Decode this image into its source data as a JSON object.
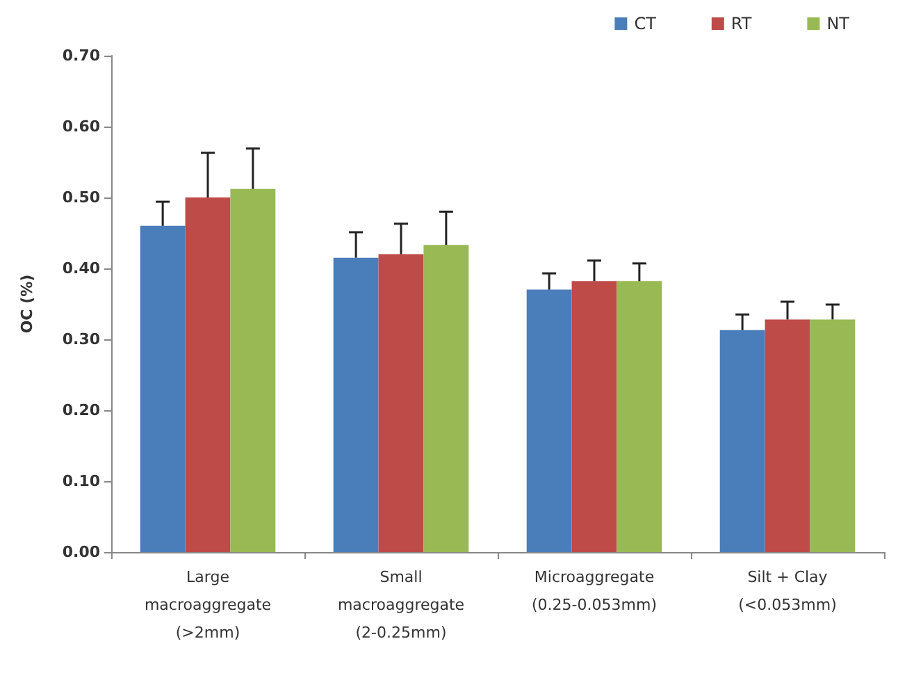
{
  "chart_data": {
    "type": "bar",
    "ylabel": "OC (%)",
    "categories": [
      "Large\nmacroaggregate\n(>2mm)",
      "Small\nmacroaggregate\n(2-0.25mm)",
      "Microaggregate\n(0.25-0.053mm)",
      "Silt + Clay\n(<0.053mm)"
    ],
    "series": [
      {
        "name": "CT",
        "color": "#4a7ebb",
        "values": [
          0.46,
          0.415,
          0.37,
          0.313
        ],
        "errors": [
          [
            0.46,
            0.494
          ],
          [
            0.415,
            0.451
          ],
          [
            0.37,
            0.393
          ],
          [
            0.313,
            0.335
          ]
        ]
      },
      {
        "name": "RT",
        "color": "#be4b48",
        "values": [
          0.5,
          0.42,
          0.382,
          0.328
        ],
        "errors": [
          [
            0.5,
            0.563
          ],
          [
            0.42,
            0.463
          ],
          [
            0.382,
            0.411
          ],
          [
            0.328,
            0.353
          ]
        ]
      },
      {
        "name": "NT",
        "color": "#98b954",
        "values": [
          0.512,
          0.433,
          0.382,
          0.328
        ],
        "errors": [
          [
            0.512,
            0.569
          ],
          [
            0.433,
            0.48
          ],
          [
            0.382,
            0.407
          ],
          [
            0.328,
            0.349
          ]
        ]
      }
    ],
    "ylim": [
      0,
      0.7
    ],
    "yticks": [
      {
        "value": 0,
        "label": "0.00"
      },
      {
        "value": 0.1,
        "label": "0.10"
      },
      {
        "value": 0.2,
        "label": "0.20"
      },
      {
        "value": 0.3,
        "label": "0.30"
      },
      {
        "value": 0.4,
        "label": "0.40"
      },
      {
        "value": 0.5,
        "label": "0.50"
      },
      {
        "value": 0.6,
        "label": "0.60"
      },
      {
        "value": 0.7,
        "label": "0.70"
      }
    ],
    "grid": false,
    "legend": "top right"
  }
}
